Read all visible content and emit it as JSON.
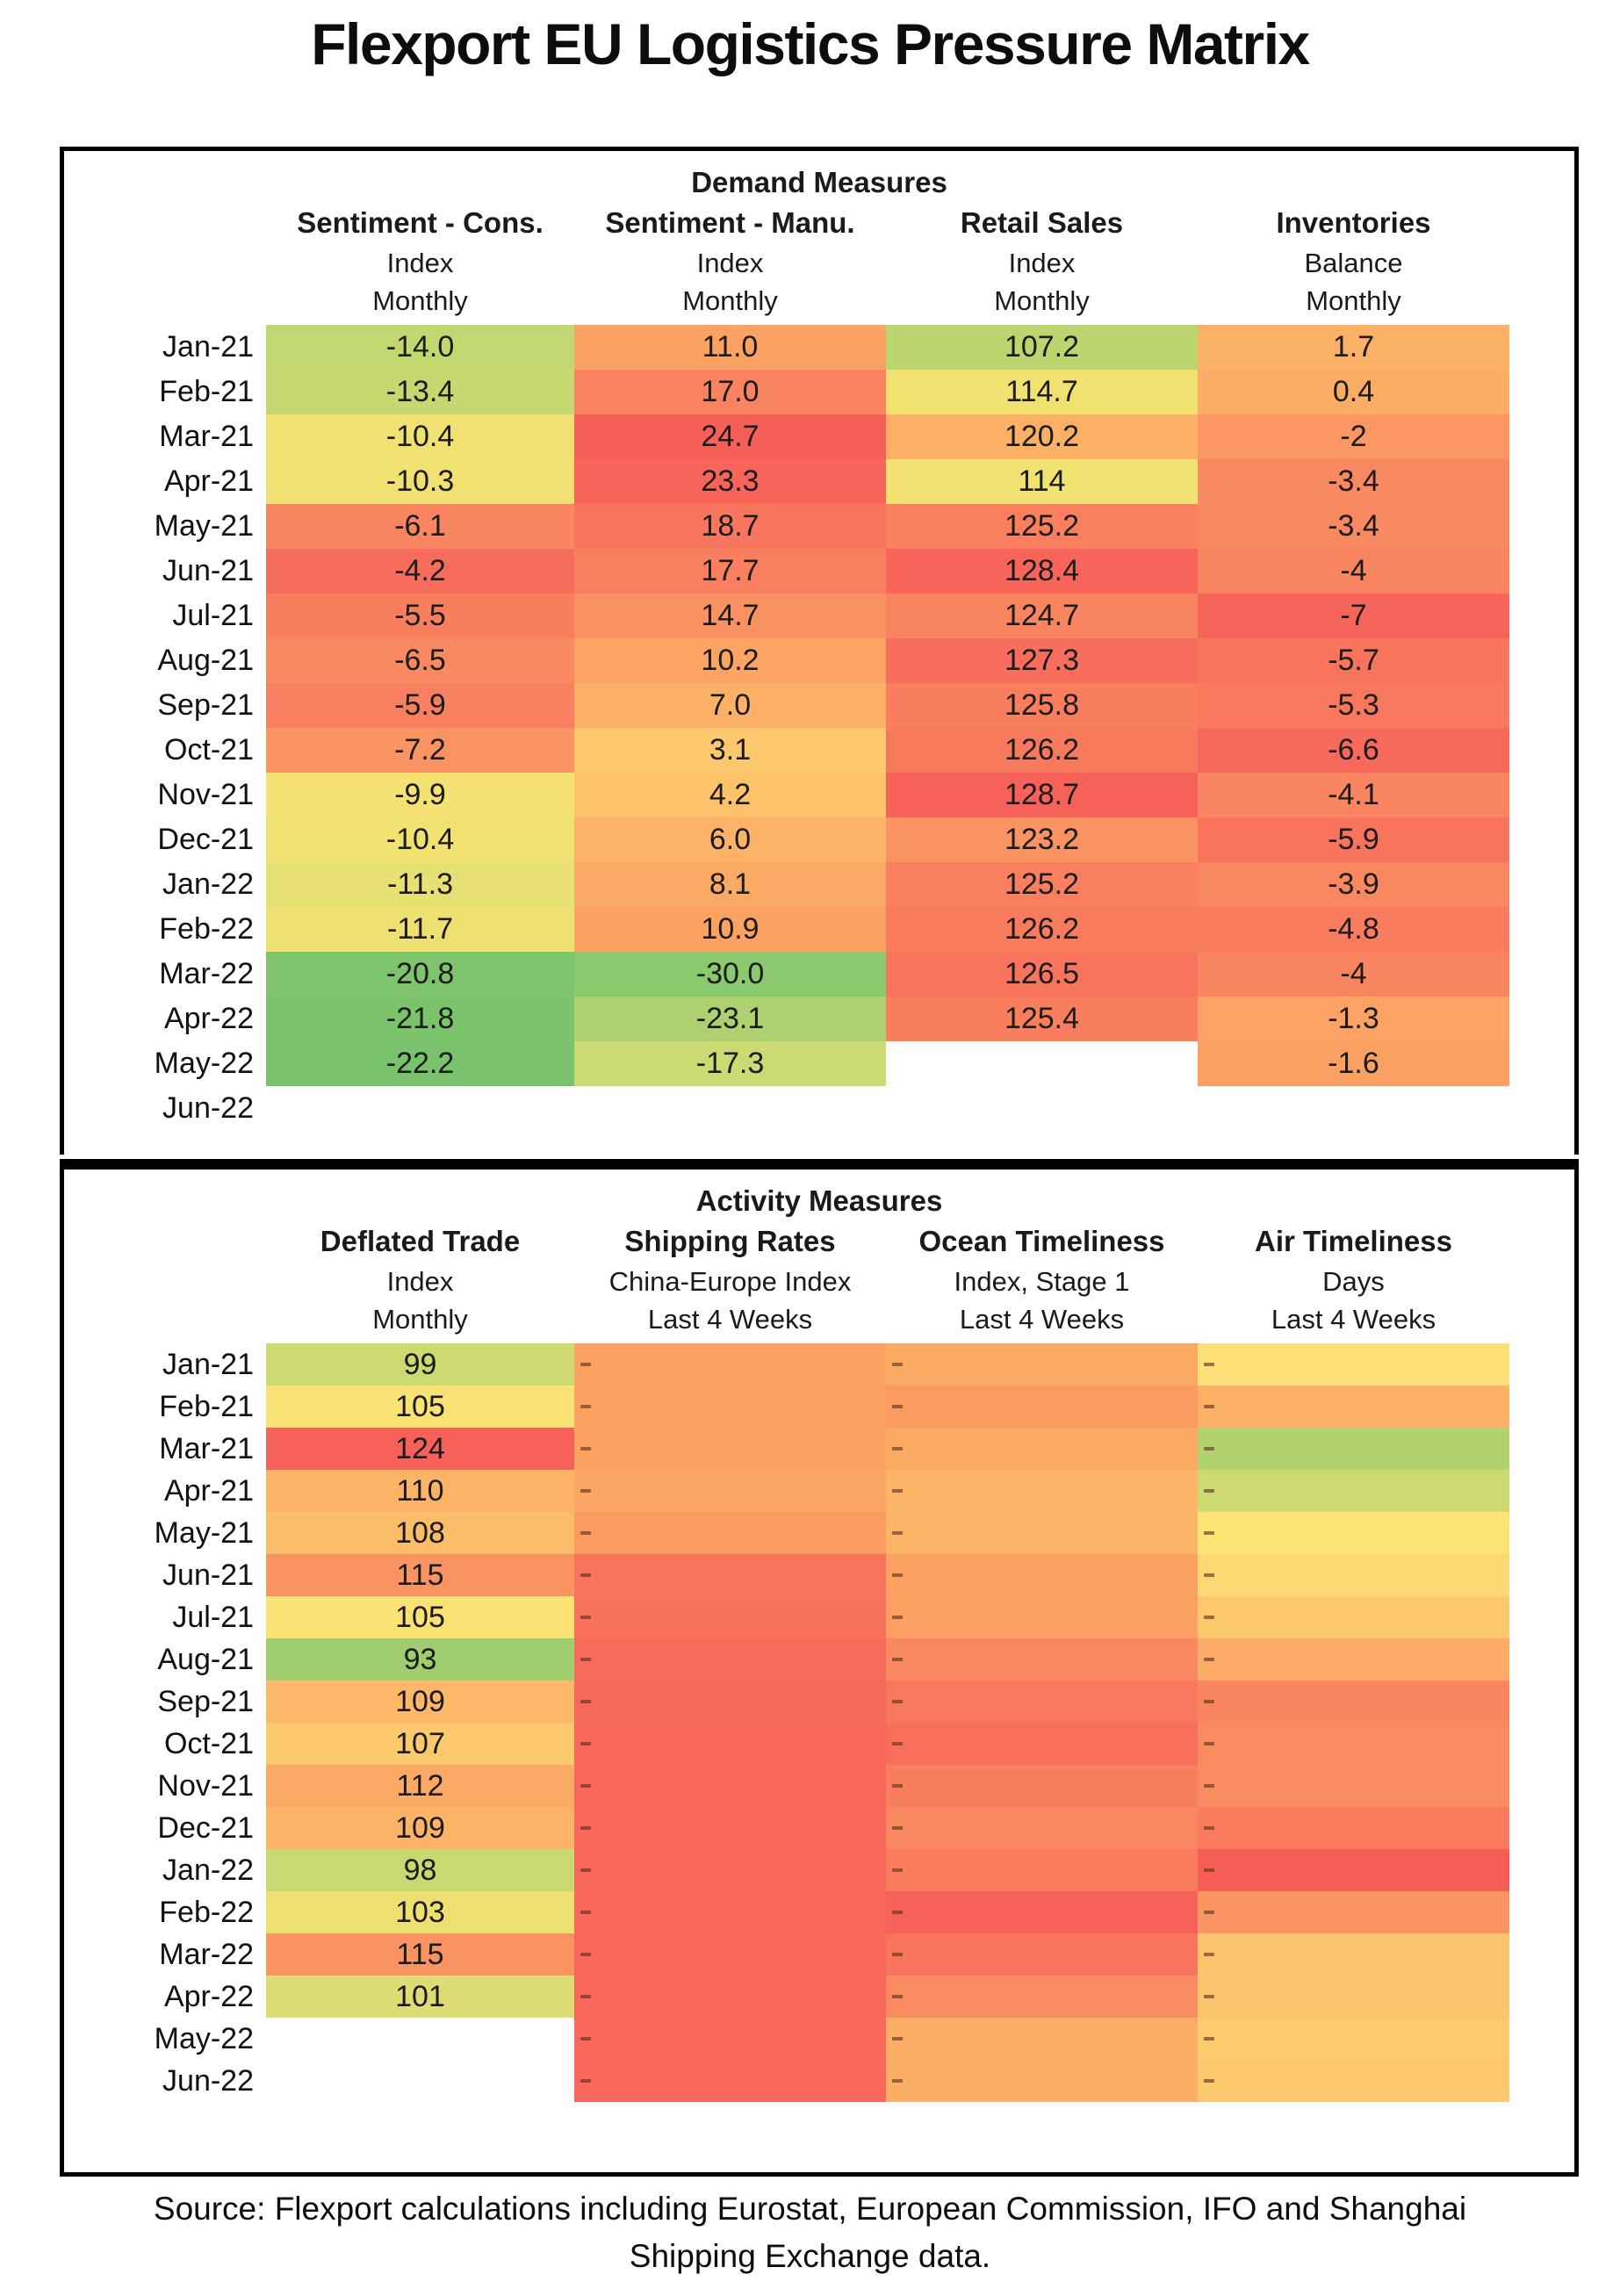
{
  "title": "Flexport EU Logistics Pressure Matrix",
  "source": {
    "line1": "Source: Flexport calculations including Eurostat, European Commission, IFO and Shanghai",
    "line2": "Shipping Exchange data."
  },
  "months": [
    "Jan-21",
    "Feb-21",
    "Mar-21",
    "Apr-21",
    "May-21",
    "Jun-21",
    "Jul-21",
    "Aug-21",
    "Sep-21",
    "Oct-21",
    "Nov-21",
    "Dec-21",
    "Jan-22",
    "Feb-22",
    "Mar-22",
    "Apr-22",
    "May-22",
    "Jun-22"
  ],
  "palette_note": "heatmap red=high pressure, green=low pressure",
  "chart_data": {
    "type": "heatmap",
    "title": "Flexport EU Logistics Pressure Matrix",
    "row_labels_months": [
      "Jan-21",
      "Feb-21",
      "Mar-21",
      "Apr-21",
      "May-21",
      "Jun-21",
      "Jul-21",
      "Aug-21",
      "Sep-21",
      "Oct-21",
      "Nov-21",
      "Dec-21",
      "Jan-22",
      "Feb-22",
      "Mar-22",
      "Apr-22",
      "May-22",
      "Jun-22"
    ],
    "sections": [
      {
        "name": "Demand Measures",
        "series": [
          {
            "name": "Sentiment - Cons. (Index, Monthly)",
            "values": [
              -14.0,
              -13.4,
              -10.4,
              -10.3,
              -6.1,
              -4.2,
              -5.5,
              -6.5,
              -5.9,
              -7.2,
              -9.9,
              -10.4,
              -11.3,
              -11.7,
              -20.8,
              -21.8,
              -22.2,
              null
            ]
          },
          {
            "name": "Sentiment - Manu. (Index, Monthly)",
            "values": [
              11.0,
              17.0,
              24.7,
              23.3,
              18.7,
              17.7,
              14.7,
              10.2,
              7.0,
              3.1,
              4.2,
              6.0,
              8.1,
              10.9,
              -30.0,
              -23.1,
              -17.3,
              null
            ]
          },
          {
            "name": "Retail Sales (Index, Monthly)",
            "values": [
              107.2,
              114.7,
              120.2,
              114,
              125.2,
              128.4,
              124.7,
              127.3,
              125.8,
              126.2,
              128.7,
              123.2,
              125.2,
              126.2,
              126.5,
              125.4,
              null,
              null
            ]
          },
          {
            "name": "Inventories (Balance, Monthly)",
            "values": [
              1.7,
              0.4,
              -2,
              -3.4,
              -3.4,
              -4,
              -7,
              -5.7,
              -5.3,
              -6.6,
              -4.1,
              -5.9,
              -3.9,
              -4.8,
              -4,
              -1.3,
              -1.6,
              null
            ]
          }
        ]
      },
      {
        "name": "Activity Measures",
        "series": [
          {
            "name": "Deflated Trade (Index, Monthly)",
            "values": [
              99,
              105,
              124,
              110,
              108,
              115,
              105,
              93,
              109,
              107,
              112,
              109,
              98,
              103,
              115,
              101,
              null,
              null
            ]
          },
          {
            "name": "Shipping Rates (China-Europe Index, Last 4 Weeks)",
            "values": "colored cells only, micro-labels illegible"
          },
          {
            "name": "Ocean Timeliness (Index, Stage 1, Last 4 Weeks)",
            "values": "colored cells only, micro-labels illegible"
          },
          {
            "name": "Air Timeliness (Days, Last 4 Weeks)",
            "values": "colored cells only, micro-labels illegible"
          }
        ]
      }
    ]
  },
  "demand": {
    "section_title": "Demand Measures",
    "columns": [
      {
        "label": "Sentiment - Cons.",
        "sub1": "Index",
        "sub2": "Monthly"
      },
      {
        "label": "Sentiment - Manu.",
        "sub1": "Index",
        "sub2": "Monthly"
      },
      {
        "label": "Retail Sales",
        "sub1": "Index",
        "sub2": "Monthly"
      },
      {
        "label": "Inventories",
        "sub1": "Balance",
        "sub2": "Monthly"
      }
    ],
    "cells": [
      [
        {
          "v": "-14.0",
          "c": "#c3d770"
        },
        {
          "v": "-13.4",
          "c": "#c7d871"
        },
        {
          "v": "-10.4",
          "c": "#f0e170"
        },
        {
          "v": "-10.3",
          "c": "#f0e170"
        },
        {
          "v": "-6.1",
          "c": "#f98660"
        },
        {
          "v": "-4.2",
          "c": "#f76d5c"
        },
        {
          "v": "-5.5",
          "c": "#f87e5e"
        },
        {
          "v": "-6.5",
          "c": "#f98961"
        },
        {
          "v": "-5.9",
          "c": "#f88060"
        },
        {
          "v": "-7.2",
          "c": "#fa9362"
        },
        {
          "v": "-9.9",
          "c": "#f6e273"
        },
        {
          "v": "-10.4",
          "c": "#f0e170"
        },
        {
          "v": "-11.3",
          "c": "#e7e072"
        },
        {
          "v": "-11.7",
          "c": "#eee070"
        },
        {
          "v": "-20.8",
          "c": "#7dc46d"
        },
        {
          "v": "-21.8",
          "c": "#7bc46c"
        },
        {
          "v": "-22.2",
          "c": "#79c36c"
        },
        null
      ],
      [
        {
          "v": "11.0",
          "c": "#fba263"
        },
        {
          "v": "17.0",
          "c": "#f98260"
        },
        {
          "v": "24.7",
          "c": "#f65f58"
        },
        {
          "v": "23.3",
          "c": "#f7655a"
        },
        {
          "v": "18.7",
          "c": "#f8765d"
        },
        {
          "v": "17.7",
          "c": "#f97f5e"
        },
        {
          "v": "14.7",
          "c": "#fa9162"
        },
        {
          "v": "10.2",
          "c": "#fba464"
        },
        {
          "v": "7.0",
          "c": "#fcb166"
        },
        {
          "v": "3.1",
          "c": "#fdc86d"
        },
        {
          "v": "4.2",
          "c": "#fcc36b"
        },
        {
          "v": "6.0",
          "c": "#fcb367"
        },
        {
          "v": "8.1",
          "c": "#fbaa65"
        },
        {
          "v": "10.9",
          "c": "#fba263"
        },
        {
          "v": "-30.0",
          "c": "#8bc96e"
        },
        {
          "v": "-23.1",
          "c": "#aed16f"
        },
        {
          "v": "-17.3",
          "c": "#cbda72"
        },
        null
      ],
      [
        {
          "v": "107.2",
          "c": "#bcd56f"
        },
        {
          "v": "114.7",
          "c": "#f0e170"
        },
        {
          "v": "120.2",
          "c": "#fbb065"
        },
        {
          "v": "114",
          "c": "#f2e271"
        },
        {
          "v": "125.2",
          "c": "#f97f5e"
        },
        {
          "v": "128.4",
          "c": "#f6645a"
        },
        {
          "v": "124.7",
          "c": "#f98560"
        },
        {
          "v": "127.3",
          "c": "#f76f5c"
        },
        {
          "v": "125.8",
          "c": "#f87e5e"
        },
        {
          "v": "126.2",
          "c": "#f87a5d"
        },
        {
          "v": "128.7",
          "c": "#f6625a"
        },
        {
          "v": "123.2",
          "c": "#fa9362"
        },
        {
          "v": "125.2",
          "c": "#f97f5e"
        },
        {
          "v": "126.2",
          "c": "#f87b5d"
        },
        {
          "v": "126.5",
          "c": "#f8745d"
        },
        {
          "v": "125.4",
          "c": "#f97e5e"
        },
        null,
        null
      ],
      [
        {
          "v": "1.7",
          "c": "#fbb166"
        },
        {
          "v": "0.4",
          "c": "#fbad65"
        },
        {
          "v": "-2",
          "c": "#fa9763"
        },
        {
          "v": "-3.4",
          "c": "#f98961"
        },
        {
          "v": "-3.4",
          "c": "#f98961"
        },
        {
          "v": "-4",
          "c": "#f98560"
        },
        {
          "v": "-7",
          "c": "#f6655a"
        },
        {
          "v": "-5.7",
          "c": "#f8745c"
        },
        {
          "v": "-5.3",
          "c": "#f8785d"
        },
        {
          "v": "-6.6",
          "c": "#f76a5b"
        },
        {
          "v": "-4.1",
          "c": "#f98660"
        },
        {
          "v": "-5.9",
          "c": "#f8735c"
        },
        {
          "v": "-3.9",
          "c": "#f98861"
        },
        {
          "v": "-4.8",
          "c": "#f87c5d"
        },
        {
          "v": "-4",
          "c": "#f98560"
        },
        {
          "v": "-1.3",
          "c": "#fba264"
        },
        {
          "v": "-1.6",
          "c": "#fba063"
        },
        null
      ]
    ]
  },
  "activity": {
    "section_title": "Activity Measures",
    "columns": [
      {
        "label": "Deflated Trade",
        "sub1": "Index",
        "sub2": "Monthly"
      },
      {
        "label": "Shipping Rates",
        "sub1": "China-Europe Index",
        "sub2": "Last 4 Weeks"
      },
      {
        "label": "Ocean Timeliness",
        "sub1": "Index, Stage 1",
        "sub2": "Last 4 Weeks"
      },
      {
        "label": "Air Timeliness",
        "sub1": "Days",
        "sub2": "Last 4 Weeks"
      }
    ],
    "cells": [
      [
        {
          "v": "99",
          "c": "#cdda72"
        },
        {
          "v": "105",
          "c": "#f8e274"
        },
        {
          "v": "124",
          "c": "#f6615a"
        },
        {
          "v": "110",
          "c": "#fcb367"
        },
        {
          "v": "108",
          "c": "#fcbd69"
        },
        {
          "v": "115",
          "c": "#fa9362"
        },
        {
          "v": "105",
          "c": "#fae173"
        },
        {
          "v": "93",
          "c": "#a0cd6e"
        },
        {
          "v": "109",
          "c": "#fcb768"
        },
        {
          "v": "107",
          "c": "#fdc96d"
        },
        {
          "v": "112",
          "c": "#fbaa65"
        },
        {
          "v": "109",
          "c": "#fcb367"
        },
        {
          "v": "98",
          "c": "#c9d971"
        },
        {
          "v": "103",
          "c": "#eee070"
        },
        {
          "v": "115",
          "c": "#fa9362"
        },
        {
          "v": "101",
          "c": "#dedd73"
        },
        null,
        null
      ],
      [
        {
          "c": "#fba263",
          "t": true
        },
        {
          "c": "#fba263",
          "t": true
        },
        {
          "c": "#fba263",
          "t": true
        },
        {
          "c": "#fba665",
          "t": true
        },
        {
          "c": "#fa9c62",
          "t": true
        },
        {
          "c": "#f8745c",
          "t": true
        },
        {
          "c": "#f8715b",
          "t": true
        },
        {
          "c": "#f76b5b",
          "t": true
        },
        {
          "c": "#f7695a",
          "t": true
        },
        {
          "c": "#f7685a",
          "t": true
        },
        {
          "c": "#f7685a",
          "t": true
        },
        {
          "c": "#f7685a",
          "t": true
        },
        {
          "c": "#f7685a",
          "t": true
        },
        {
          "c": "#f7685a",
          "t": true
        },
        {
          "c": "#f7685a",
          "t": true
        },
        {
          "c": "#f7685a",
          "t": true
        },
        {
          "c": "#f7685a",
          "t": true
        },
        {
          "c": "#f7685a",
          "t": true
        }
      ],
      [
        {
          "c": "#fbaa64",
          "t": true
        },
        {
          "c": "#fa9c62",
          "t": true
        },
        {
          "c": "#fbaa64",
          "t": true
        },
        {
          "c": "#fcb467",
          "t": true
        },
        {
          "c": "#fcb467",
          "t": true
        },
        {
          "c": "#fba263",
          "t": true
        },
        {
          "c": "#fba062",
          "t": true
        },
        {
          "c": "#f98860",
          "t": true
        },
        {
          "c": "#f8785d",
          "t": true
        },
        {
          "c": "#f8705b",
          "t": true
        },
        {
          "c": "#f97e5e",
          "t": true
        },
        {
          "c": "#f98860",
          "t": true
        },
        {
          "c": "#f97c5d",
          "t": true
        },
        {
          "c": "#f6625a",
          "t": true
        },
        {
          "c": "#f8745c",
          "t": true
        },
        {
          "c": "#f98b61",
          "t": true
        },
        {
          "c": "#fbac65",
          "t": true
        },
        {
          "c": "#fbae66",
          "t": true
        }
      ],
      [
        {
          "c": "#fde077",
          "t": true
        },
        {
          "c": "#fcb166",
          "t": true
        },
        {
          "c": "#b2d26e",
          "t": true
        },
        {
          "c": "#cdda72",
          "t": true
        },
        {
          "c": "#fde475",
          "t": true
        },
        {
          "c": "#fdd873",
          "t": true
        },
        {
          "c": "#fcc86d",
          "t": true
        },
        {
          "c": "#fcac66",
          "t": true
        },
        {
          "c": "#f98660",
          "t": true
        },
        {
          "c": "#f98b61",
          "t": true
        },
        {
          "c": "#f98b61",
          "t": true
        },
        {
          "c": "#f87b5d",
          "t": true
        },
        {
          "c": "#f65d57",
          "t": true
        },
        {
          "c": "#fa9663",
          "t": true
        },
        {
          "c": "#fcc46c",
          "t": true
        },
        {
          "c": "#fcc56d",
          "t": true
        },
        {
          "c": "#fdca6e",
          "t": true
        },
        {
          "c": "#fdc96d",
          "t": true
        }
      ]
    ]
  }
}
